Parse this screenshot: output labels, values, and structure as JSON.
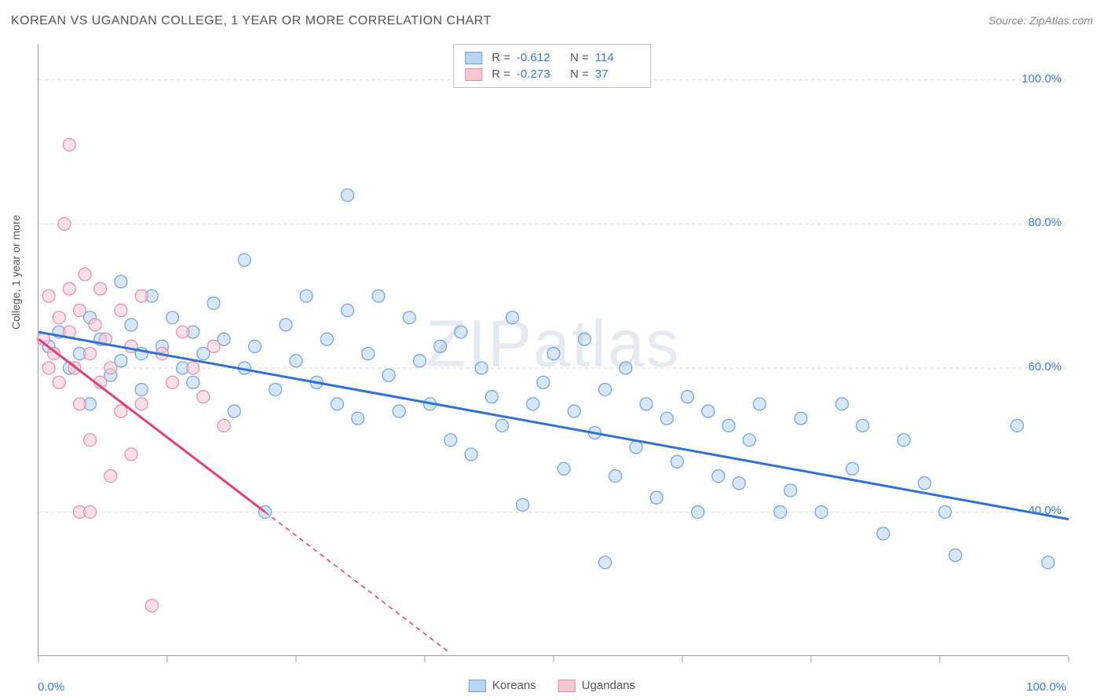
{
  "header": {
    "title": "KOREAN VS UGANDAN COLLEGE, 1 YEAR OR MORE CORRELATION CHART",
    "source": "Source: ZipAtlas.com"
  },
  "watermark": "ZIPatlas",
  "chart": {
    "type": "scatter",
    "y_axis_label": "College, 1 year or more",
    "xlim": [
      0,
      100
    ],
    "ylim": [
      20,
      105
    ],
    "x_end_labels": [
      "0.0%",
      "100.0%"
    ],
    "y_tick_values": [
      40,
      60,
      80,
      100
    ],
    "y_tick_labels": [
      "40.0%",
      "60.0%",
      "80.0%",
      "100.0%"
    ],
    "x_tick_values": [
      0,
      12.5,
      25,
      37.5,
      50,
      62.5,
      75,
      87.5,
      100
    ],
    "grid_color": "#d8d8d8",
    "grid_dash": "4,4",
    "background_color": "#ffffff",
    "marker_radius": 8,
    "marker_stroke_width": 1.2,
    "series": [
      {
        "name": "Koreans",
        "fill": "#b8d4f0",
        "stroke": "#6aa3e0",
        "fill_opacity": 0.55,
        "R": "-0.612",
        "N": "114",
        "trend": {
          "x1": 0,
          "y1": 65,
          "x2": 100,
          "y2": 39,
          "color": "#2f72d0",
          "width": 3,
          "dash": null,
          "extrap_to": 100
        },
        "points": [
          [
            1,
            63
          ],
          [
            2,
            65
          ],
          [
            3,
            60
          ],
          [
            4,
            62
          ],
          [
            5,
            55
          ],
          [
            5,
            67
          ],
          [
            6,
            64
          ],
          [
            7,
            59
          ],
          [
            8,
            61
          ],
          [
            8,
            72
          ],
          [
            9,
            66
          ],
          [
            10,
            62
          ],
          [
            10,
            57
          ],
          [
            11,
            70
          ],
          [
            12,
            63
          ],
          [
            13,
            67
          ],
          [
            14,
            60
          ],
          [
            15,
            65
          ],
          [
            15,
            58
          ],
          [
            16,
            62
          ],
          [
            17,
            69
          ],
          [
            18,
            64
          ],
          [
            19,
            54
          ],
          [
            20,
            75
          ],
          [
            20,
            60
          ],
          [
            21,
            63
          ],
          [
            22,
            40
          ],
          [
            23,
            57
          ],
          [
            24,
            66
          ],
          [
            25,
            61
          ],
          [
            26,
            70
          ],
          [
            27,
            58
          ],
          [
            28,
            64
          ],
          [
            29,
            55
          ],
          [
            30,
            68
          ],
          [
            30,
            84
          ],
          [
            31,
            53
          ],
          [
            32,
            62
          ],
          [
            33,
            70
          ],
          [
            34,
            59
          ],
          [
            35,
            54
          ],
          [
            36,
            67
          ],
          [
            37,
            61
          ],
          [
            38,
            55
          ],
          [
            39,
            63
          ],
          [
            40,
            50
          ],
          [
            41,
            65
          ],
          [
            42,
            48
          ],
          [
            43,
            60
          ],
          [
            44,
            56
          ],
          [
            45,
            52
          ],
          [
            46,
            67
          ],
          [
            47,
            41
          ],
          [
            48,
            55
          ],
          [
            49,
            58
          ],
          [
            50,
            62
          ],
          [
            51,
            46
          ],
          [
            52,
            54
          ],
          [
            53,
            64
          ],
          [
            54,
            51
          ],
          [
            55,
            57
          ],
          [
            55,
            33
          ],
          [
            56,
            45
          ],
          [
            57,
            60
          ],
          [
            58,
            49
          ],
          [
            59,
            55
          ],
          [
            60,
            42
          ],
          [
            61,
            53
          ],
          [
            62,
            47
          ],
          [
            63,
            56
          ],
          [
            64,
            40
          ],
          [
            65,
            54
          ],
          [
            66,
            45
          ],
          [
            67,
            52
          ],
          [
            68,
            44
          ],
          [
            69,
            50
          ],
          [
            70,
            55
          ],
          [
            72,
            40
          ],
          [
            73,
            43
          ],
          [
            74,
            53
          ],
          [
            76,
            40
          ],
          [
            78,
            55
          ],
          [
            79,
            46
          ],
          [
            80,
            52
          ],
          [
            82,
            37
          ],
          [
            84,
            50
          ],
          [
            86,
            44
          ],
          [
            88,
            40
          ],
          [
            89,
            34
          ],
          [
            95,
            52
          ],
          [
            98,
            33
          ]
        ]
      },
      {
        "name": "Ugandans",
        "fill": "#f7c8d4",
        "stroke": "#e88aa3",
        "fill_opacity": 0.55,
        "R": "-0.273",
        "N": "37",
        "trend": {
          "x1": 0,
          "y1": 64,
          "x2": 22,
          "y2": 40,
          "color": "#e04074",
          "width": 3,
          "dash": null,
          "extrap_to": 40,
          "extrap_dash": "6,5"
        },
        "points": [
          [
            0.5,
            64
          ],
          [
            1,
            60
          ],
          [
            1,
            70
          ],
          [
            1.5,
            62
          ],
          [
            2,
            67
          ],
          [
            2,
            58
          ],
          [
            2.5,
            80
          ],
          [
            3,
            65
          ],
          [
            3,
            71
          ],
          [
            3.5,
            60
          ],
          [
            4,
            68
          ],
          [
            4,
            55
          ],
          [
            4.5,
            73
          ],
          [
            5,
            62
          ],
          [
            5,
            50
          ],
          [
            5.5,
            66
          ],
          [
            6,
            58
          ],
          [
            6,
            71
          ],
          [
            6.5,
            64
          ],
          [
            7,
            45
          ],
          [
            7,
            60
          ],
          [
            8,
            68
          ],
          [
            8,
            54
          ],
          [
            9,
            63
          ],
          [
            9,
            48
          ],
          [
            10,
            70
          ],
          [
            10,
            55
          ],
          [
            11,
            27
          ],
          [
            12,
            62
          ],
          [
            13,
            58
          ],
          [
            14,
            65
          ],
          [
            15,
            60
          ],
          [
            16,
            56
          ],
          [
            17,
            63
          ],
          [
            18,
            52
          ],
          [
            3,
            91
          ],
          [
            4,
            40
          ],
          [
            5,
            40
          ]
        ]
      }
    ],
    "legend_bottom": [
      {
        "label": "Koreans",
        "fill": "#b8d4f0",
        "stroke": "#6aa3e0"
      },
      {
        "label": "Ugandans",
        "fill": "#f7c8d4",
        "stroke": "#e88aa3"
      }
    ]
  }
}
